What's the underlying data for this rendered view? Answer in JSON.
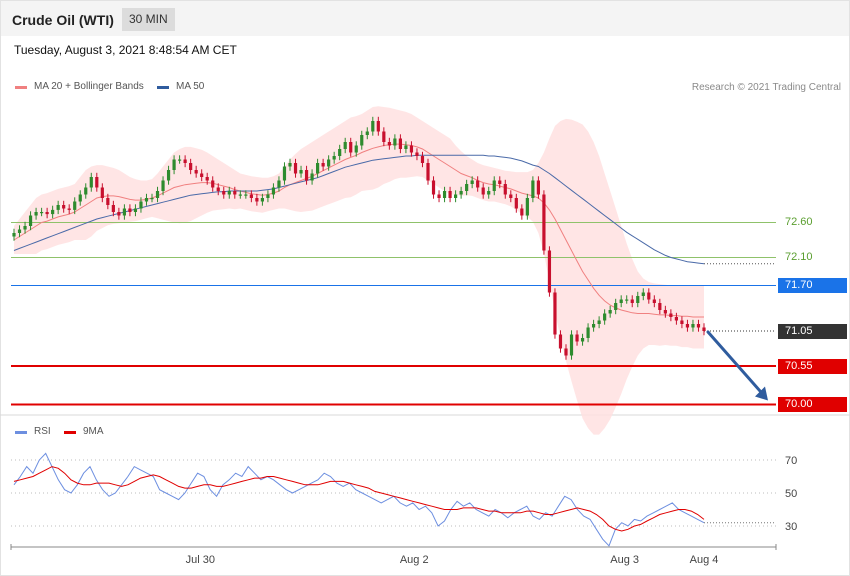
{
  "header": {
    "title": "Crude Oil (WTI)",
    "timeframe": "30 MIN"
  },
  "timestamp": "Tuesday, August 3, 2021 8:48:54 AM CET",
  "copyright": "Research © 2021 Trading Central",
  "colors": {
    "up": "#2e8b2e",
    "down": "#c8102e",
    "ma20": "#f08080",
    "bands": "#ffe0e0",
    "ma50": "#4a6aa8",
    "resistance_green": "#8fc26a",
    "pivot_blue": "#1a73e8",
    "support_red": "#e00000",
    "last_price": "#333333",
    "rsi": "#6d8fe0",
    "rsi_ma": "#e00000",
    "arrow": "#2f5c9e"
  },
  "chart_data": [
    {
      "type": "candlestick",
      "name": "Crude Oil (WTI) 30 MIN",
      "legend": [
        {
          "label": "MA 20 + Bollinger Bands",
          "color": "#f08080"
        },
        {
          "label": "MA 50",
          "color": "#2f5c9e"
        }
      ],
      "x_ticks": [
        "Jul 30",
        "Aug 2",
        "Aug 3",
        "Aug 4"
      ],
      "ylim": [
        69.8,
        74.2
      ],
      "levels": [
        {
          "label": "72.60",
          "value": 72.6,
          "kind": "resistance"
        },
        {
          "label": "72.10",
          "value": 72.1,
          "kind": "resistance"
        },
        {
          "label": "71.70",
          "value": 71.7,
          "kind": "pivot"
        },
        {
          "label": "71.05",
          "value": 71.05,
          "kind": "last"
        },
        {
          "label": "70.55",
          "value": 70.55,
          "kind": "support"
        },
        {
          "label": "70.00",
          "value": 70.0,
          "kind": "support"
        }
      ],
      "close": [
        72.45,
        72.5,
        72.55,
        72.7,
        72.75,
        72.75,
        72.72,
        72.78,
        72.85,
        72.8,
        72.78,
        72.9,
        73.0,
        73.1,
        73.25,
        73.1,
        72.95,
        72.85,
        72.75,
        72.7,
        72.8,
        72.75,
        72.8,
        72.9,
        72.95,
        72.95,
        73.05,
        73.2,
        73.35,
        73.5,
        73.5,
        73.45,
        73.35,
        73.3,
        73.25,
        73.2,
        73.1,
        73.05,
        73.0,
        73.05,
        73.0,
        73.0,
        73.0,
        72.95,
        72.9,
        72.95,
        73.0,
        73.1,
        73.2,
        73.4,
        73.45,
        73.3,
        73.35,
        73.2,
        73.3,
        73.45,
        73.4,
        73.5,
        73.55,
        73.65,
        73.75,
        73.6,
        73.7,
        73.85,
        73.9,
        74.05,
        73.9,
        73.75,
        73.7,
        73.8,
        73.65,
        73.7,
        73.6,
        73.55,
        73.45,
        73.2,
        73.0,
        72.95,
        73.05,
        72.95,
        73.0,
        73.05,
        73.15,
        73.2,
        73.1,
        73.0,
        73.05,
        73.2,
        73.15,
        73.0,
        72.95,
        72.8,
        72.7,
        72.95,
        73.2,
        73.0,
        72.2,
        71.6,
        71.0,
        70.8,
        70.7,
        71.0,
        70.9,
        70.95,
        71.1,
        71.15,
        71.2,
        71.3,
        71.35,
        71.45,
        71.5,
        71.5,
        71.45,
        71.55,
        71.6,
        71.5,
        71.45,
        71.35,
        71.3,
        71.25,
        71.2,
        71.15,
        71.1,
        71.15,
        71.1,
        71.05
      ],
      "ma20": [
        72.35,
        72.4,
        72.45,
        72.5,
        72.55,
        72.6,
        72.62,
        72.65,
        72.68,
        72.7,
        72.72,
        72.75,
        72.8,
        72.85,
        72.9,
        72.95,
        72.97,
        72.98,
        72.98,
        72.97,
        72.95,
        72.93,
        72.92,
        72.92,
        72.93,
        72.95,
        72.98,
        73.02,
        73.06,
        73.1,
        73.12,
        73.14,
        73.15,
        73.16,
        73.17,
        73.17,
        73.16,
        73.14,
        73.12,
        73.1,
        73.07,
        73.05,
        73.03,
        73.01,
        73.0,
        72.99,
        73.0,
        73.02,
        73.05,
        73.1,
        73.14,
        73.17,
        73.2,
        73.23,
        73.26,
        73.3,
        73.34,
        73.38,
        73.42,
        73.46,
        73.5,
        73.53,
        73.56,
        73.6,
        73.63,
        73.66,
        73.68,
        73.7,
        73.71,
        73.72,
        73.72,
        73.71,
        73.7,
        73.68,
        73.65,
        73.6,
        73.55,
        73.5,
        73.45,
        73.4,
        73.35,
        73.3,
        73.27,
        73.24,
        73.2,
        73.17,
        73.15,
        73.14,
        73.12,
        73.1,
        73.08,
        73.05,
        73.02,
        73.0,
        72.98,
        72.95,
        72.88,
        72.78,
        72.65,
        72.5,
        72.35,
        72.2,
        72.05,
        71.9,
        71.78,
        71.66,
        71.56,
        71.48,
        71.42,
        71.38,
        71.35,
        71.33,
        71.31,
        71.3,
        71.3,
        71.3,
        71.29,
        71.28,
        71.28,
        71.27,
        71.27,
        71.26,
        71.26,
        71.25,
        71.25,
        71.25
      ],
      "ma50": [
        72.2,
        72.23,
        72.26,
        72.29,
        72.32,
        72.35,
        72.38,
        72.41,
        72.44,
        72.47,
        72.5,
        72.53,
        72.56,
        72.59,
        72.62,
        72.65,
        72.67,
        72.69,
        72.71,
        72.73,
        72.75,
        72.77,
        72.79,
        72.81,
        72.83,
        72.85,
        72.87,
        72.89,
        72.91,
        72.93,
        72.95,
        72.97,
        72.99,
        73.0,
        73.01,
        73.02,
        73.03,
        73.04,
        73.04,
        73.05,
        73.05,
        73.05,
        73.05,
        73.05,
        73.05,
        73.06,
        73.07,
        73.08,
        73.1,
        73.12,
        73.14,
        73.16,
        73.18,
        73.2,
        73.22,
        73.24,
        73.27,
        73.3,
        73.33,
        73.36,
        73.39,
        73.41,
        73.43,
        73.45,
        73.47,
        73.49,
        73.5,
        73.51,
        73.52,
        73.53,
        73.54,
        73.55,
        73.55,
        73.56,
        73.56,
        73.56,
        73.56,
        73.56,
        73.56,
        73.56,
        73.56,
        73.56,
        73.56,
        73.56,
        73.56,
        73.56,
        73.55,
        73.55,
        73.54,
        73.53,
        73.52,
        73.5,
        73.48,
        73.45,
        73.42,
        73.4,
        73.35,
        73.3,
        73.24,
        73.18,
        73.12,
        73.06,
        73.0,
        72.94,
        72.88,
        72.82,
        72.76,
        72.7,
        72.64,
        72.58,
        72.52,
        72.46,
        72.41,
        72.36,
        72.31,
        72.26,
        72.21,
        72.17,
        72.13,
        72.1,
        72.08,
        72.06,
        72.04,
        72.03,
        72.02,
        72.01
      ],
      "band_upper": [
        72.55,
        72.65,
        72.75,
        72.85,
        72.95,
        73.0,
        73.02,
        73.05,
        73.08,
        73.1,
        73.12,
        73.15,
        73.25,
        73.35,
        73.4,
        73.42,
        73.42,
        73.4,
        73.38,
        73.35,
        73.3,
        73.25,
        73.22,
        73.2,
        73.2,
        73.22,
        73.3,
        73.4,
        73.5,
        73.6,
        73.65,
        73.68,
        73.68,
        73.66,
        73.64,
        73.6,
        73.55,
        73.5,
        73.45,
        73.4,
        73.35,
        73.3,
        73.28,
        73.26,
        73.25,
        73.24,
        73.24,
        73.26,
        73.3,
        73.4,
        73.5,
        73.58,
        73.65,
        73.7,
        73.75,
        73.8,
        73.85,
        73.9,
        73.95,
        74.0,
        74.05,
        74.1,
        74.12,
        74.15,
        74.2,
        74.25,
        74.26,
        74.25,
        74.24,
        74.22,
        74.2,
        74.18,
        74.15,
        74.1,
        74.05,
        74.0,
        73.95,
        73.9,
        73.85,
        73.8,
        73.7,
        73.62,
        73.55,
        73.5,
        73.45,
        73.42,
        73.4,
        73.38,
        73.36,
        73.34,
        73.33,
        73.32,
        73.32,
        73.32,
        73.35,
        73.45,
        73.6,
        73.8,
        73.98,
        74.05,
        74.08,
        74.07,
        74.04,
        74.0,
        73.9,
        73.75,
        73.55,
        73.3,
        73.05,
        72.8,
        72.55,
        72.3,
        72.08,
        71.9,
        71.8,
        71.75,
        71.73,
        71.72,
        71.71,
        71.7,
        71.7,
        71.7,
        71.7,
        71.7,
        71.7,
        71.7
      ],
      "band_lower": [
        72.15,
        72.15,
        72.15,
        72.15,
        72.15,
        72.2,
        72.22,
        72.25,
        72.28,
        72.3,
        72.32,
        72.35,
        72.35,
        72.35,
        72.4,
        72.48,
        72.52,
        72.56,
        72.58,
        72.59,
        72.6,
        72.61,
        72.62,
        72.64,
        72.66,
        72.68,
        72.66,
        72.64,
        72.62,
        72.6,
        72.59,
        72.6,
        72.62,
        72.66,
        72.7,
        72.74,
        72.77,
        72.78,
        72.79,
        72.8,
        72.79,
        72.8,
        72.78,
        72.76,
        72.75,
        72.74,
        72.76,
        72.78,
        72.8,
        72.8,
        72.78,
        72.76,
        72.75,
        72.76,
        72.77,
        72.8,
        72.83,
        72.86,
        72.89,
        72.92,
        72.95,
        72.96,
        73.0,
        73.05,
        73.06,
        73.07,
        73.1,
        73.15,
        73.18,
        73.22,
        73.24,
        73.24,
        73.25,
        73.26,
        73.25,
        73.2,
        73.15,
        73.1,
        73.05,
        73.0,
        73.0,
        72.98,
        72.99,
        72.98,
        72.95,
        72.92,
        72.9,
        72.9,
        72.88,
        72.86,
        72.83,
        72.78,
        72.72,
        72.68,
        72.61,
        72.45,
        72.16,
        71.76,
        71.32,
        70.95,
        70.62,
        70.33,
        70.06,
        69.8,
        69.66,
        69.57,
        69.57,
        69.66,
        69.79,
        69.96,
        70.15,
        70.36,
        70.54,
        70.7,
        70.8,
        70.85,
        70.85,
        70.84,
        70.85,
        70.84,
        70.84,
        70.82,
        70.82,
        70.8,
        70.8,
        70.8
      ]
    },
    {
      "type": "line",
      "name": "RSI panel",
      "legend": [
        {
          "label": "RSI",
          "color": "#6d8fe0"
        },
        {
          "label": "9MA",
          "color": "#e00000"
        }
      ],
      "y_ticks": [
        "70",
        "50",
        "30"
      ],
      "ylim": [
        17,
        78
      ],
      "series": [
        {
          "name": "RSI",
          "values": [
            55,
            60,
            66,
            62,
            70,
            74,
            66,
            58,
            52,
            50,
            55,
            62,
            66,
            58,
            52,
            48,
            50,
            55,
            60,
            66,
            64,
            62,
            60,
            52,
            50,
            48,
            46,
            50,
            56,
            62,
            60,
            52,
            48,
            55,
            58,
            62,
            60,
            66,
            62,
            58,
            60,
            58,
            55,
            52,
            50,
            52,
            54,
            56,
            58,
            62,
            60,
            56,
            54,
            56,
            52,
            50,
            48,
            46,
            44,
            46,
            48,
            44,
            42,
            44,
            40,
            42,
            38,
            30,
            33,
            40,
            45,
            42,
            44,
            40,
            38,
            36,
            40,
            38,
            35,
            38,
            40,
            42,
            36,
            34,
            38,
            36,
            42,
            48,
            46,
            40,
            36,
            34,
            28,
            22,
            18,
            28,
            32,
            30,
            34,
            33,
            36,
            38,
            40,
            42,
            44,
            40,
            38,
            36,
            34,
            32
          ]
        },
        {
          "name": "9MA",
          "values": [
            57,
            58,
            59,
            60,
            62,
            64,
            66,
            65,
            62,
            58,
            56,
            55,
            55,
            56,
            56,
            56,
            55,
            54,
            55,
            57,
            59,
            60,
            61,
            60,
            58,
            56,
            54,
            53,
            53,
            54,
            55,
            55,
            54,
            54,
            55,
            56,
            57,
            58,
            59,
            59,
            60,
            60,
            59,
            58,
            57,
            56,
            55,
            55,
            55,
            56,
            57,
            57,
            57,
            56,
            55,
            54,
            53,
            51,
            50,
            49,
            48,
            47,
            46,
            45,
            44,
            43,
            42,
            41,
            40,
            40,
            40,
            41,
            41,
            41,
            40,
            39,
            39,
            38,
            38,
            38,
            38,
            39,
            39,
            38,
            37,
            37,
            38,
            39,
            40,
            41,
            40,
            39,
            37,
            34,
            30,
            28,
            27,
            28,
            30,
            31,
            33,
            35,
            37,
            38,
            39,
            40,
            40,
            39,
            37,
            34
          ]
        }
      ]
    }
  ]
}
